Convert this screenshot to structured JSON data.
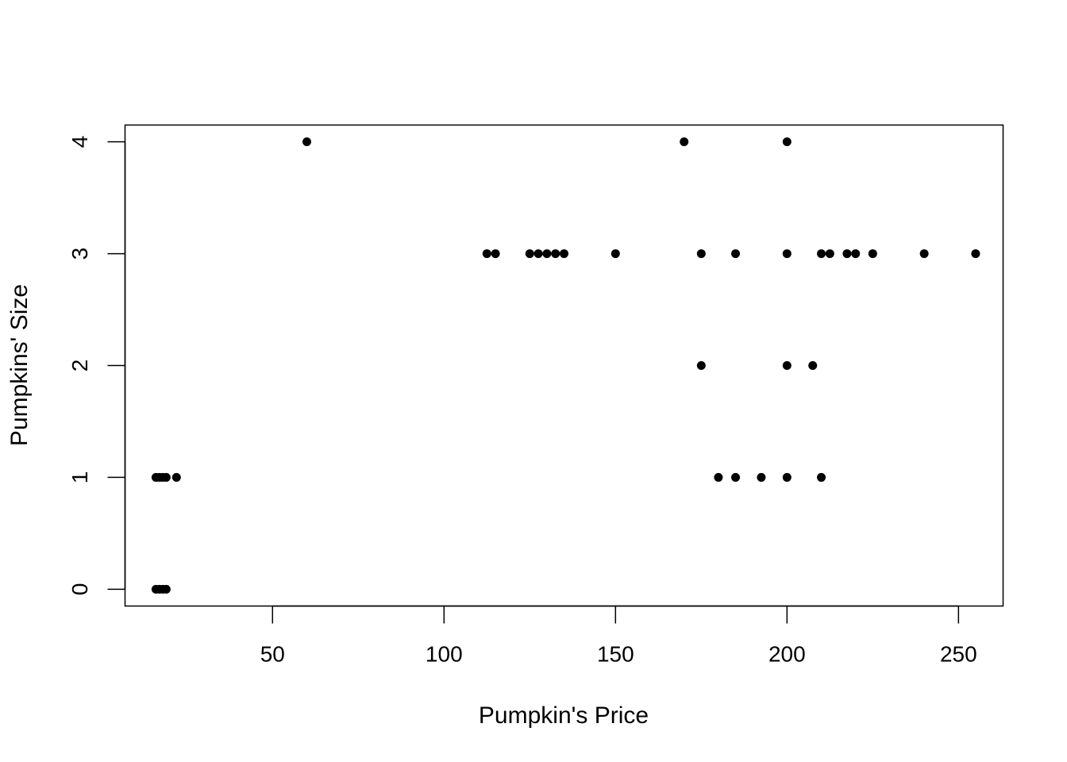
{
  "chart_data": {
    "type": "scatter",
    "title": "",
    "xlabel": "Pumpkin's Price",
    "ylabel": "Pumpkins' Size",
    "xlim": [
      7,
      263
    ],
    "ylim": [
      -0.15,
      4.15
    ],
    "xticks": [
      50,
      100,
      150,
      200,
      250
    ],
    "yticks": [
      0,
      1,
      2,
      3,
      4
    ],
    "grid": false,
    "point_color": "#000000",
    "points": [
      {
        "x": 60,
        "y": 4
      },
      {
        "x": 170,
        "y": 4
      },
      {
        "x": 200,
        "y": 4
      },
      {
        "x": 112.5,
        "y": 3
      },
      {
        "x": 115,
        "y": 3
      },
      {
        "x": 125,
        "y": 3
      },
      {
        "x": 127.5,
        "y": 3
      },
      {
        "x": 130,
        "y": 3
      },
      {
        "x": 132.5,
        "y": 3
      },
      {
        "x": 135,
        "y": 3
      },
      {
        "x": 150,
        "y": 3
      },
      {
        "x": 175,
        "y": 3
      },
      {
        "x": 185,
        "y": 3
      },
      {
        "x": 200,
        "y": 3
      },
      {
        "x": 210,
        "y": 3
      },
      {
        "x": 212.5,
        "y": 3
      },
      {
        "x": 217.5,
        "y": 3
      },
      {
        "x": 220,
        "y": 3
      },
      {
        "x": 225,
        "y": 3
      },
      {
        "x": 240,
        "y": 3
      },
      {
        "x": 255,
        "y": 3
      },
      {
        "x": 175,
        "y": 2
      },
      {
        "x": 200,
        "y": 2
      },
      {
        "x": 207.5,
        "y": 2
      },
      {
        "x": 16,
        "y": 1
      },
      {
        "x": 17,
        "y": 1
      },
      {
        "x": 18,
        "y": 1
      },
      {
        "x": 19,
        "y": 1
      },
      {
        "x": 22,
        "y": 1
      },
      {
        "x": 180,
        "y": 1
      },
      {
        "x": 185,
        "y": 1
      },
      {
        "x": 192.5,
        "y": 1
      },
      {
        "x": 200,
        "y": 1
      },
      {
        "x": 210,
        "y": 1
      },
      {
        "x": 16,
        "y": 0
      },
      {
        "x": 17,
        "y": 0
      },
      {
        "x": 18,
        "y": 0
      },
      {
        "x": 19,
        "y": 0
      }
    ]
  }
}
